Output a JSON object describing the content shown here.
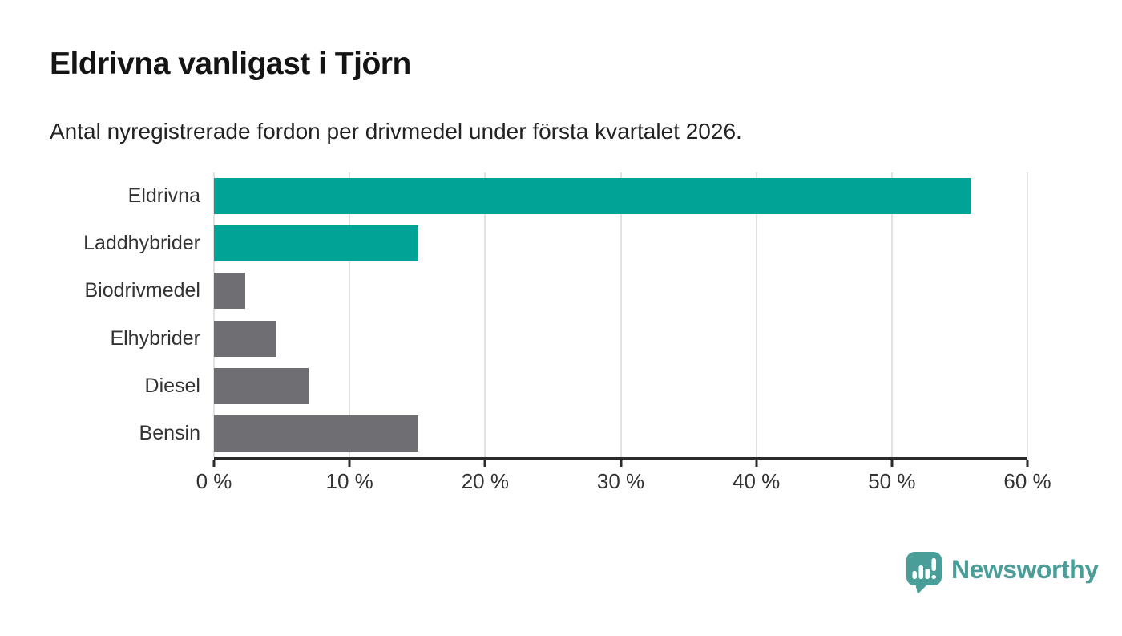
{
  "header": {
    "title": "Eldrivna vanligast i Tjörn",
    "subtitle": "Antal nyregistrerade fordon per drivmedel under första kvartalet 2026."
  },
  "chart_data": {
    "type": "bar",
    "orientation": "horizontal",
    "title": "Eldrivna vanligast i Tjörn",
    "subtitle": "Antal nyregistrerade fordon per drivmedel under första kvartalet 2026.",
    "categories": [
      "Eldrivna",
      "Laddhybrider",
      "Biodrivmedel",
      "Elhybrider",
      "Diesel",
      "Bensin"
    ],
    "values": [
      55.8,
      15.1,
      2.3,
      4.6,
      7.0,
      15.1
    ],
    "unit": "%",
    "xlim": [
      0,
      60
    ],
    "x_ticks": [
      0,
      10,
      20,
      30,
      40,
      50,
      60
    ],
    "x_tick_labels": [
      "0 %",
      "10 %",
      "20 %",
      "30 %",
      "40 %",
      "50 %",
      "60 %"
    ],
    "bar_colors": [
      "#00a396",
      "#00a396",
      "#6e6e73",
      "#6e6e73",
      "#6e6e73",
      "#6e6e73"
    ],
    "grid": "vertical-gridlines-on",
    "legend": "none"
  },
  "colors": {
    "accent_teal": "#00a396",
    "neutral_gray": "#6e6e73",
    "gridline": "#e1e1e1",
    "axis": "#2b2b2b",
    "logo_teal": "#4a9e99"
  },
  "footer": {
    "logo_text": "Newsworthy",
    "logo_icon": "bar-chart-speech-bubble"
  }
}
